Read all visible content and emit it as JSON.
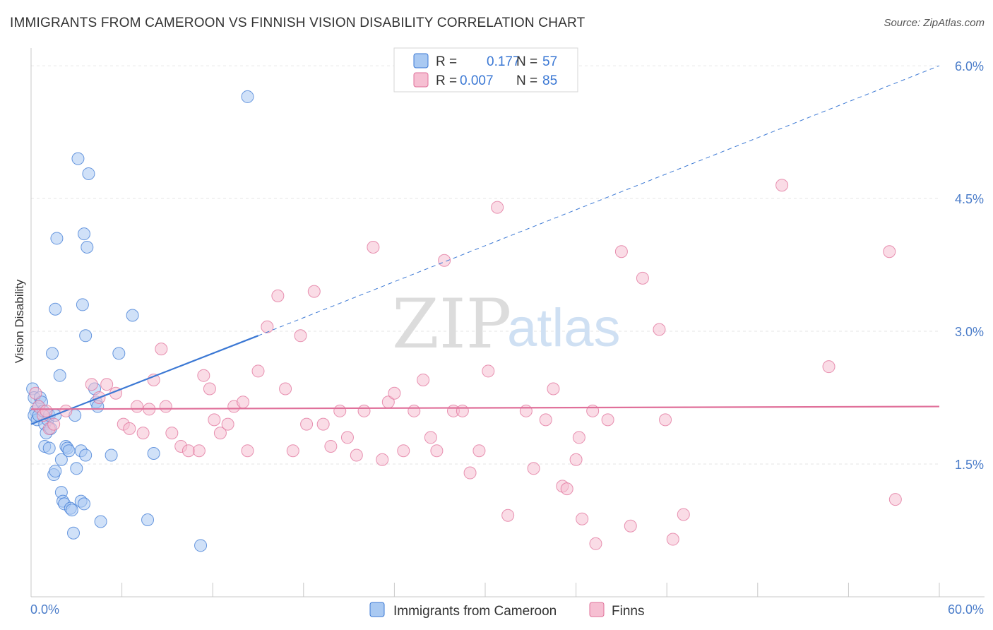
{
  "title": "IMMIGRANTS FROM CAMEROON VS FINNISH VISION DISABILITY CORRELATION CHART",
  "source": "Source: ZipAtlas.com",
  "watermark": {
    "part1": "ZIP",
    "part2": "atlas"
  },
  "colors": {
    "blue": "#3b78d4",
    "blue_fill": "#a9c9f2",
    "pink": "#e0709a",
    "pink_fill": "#f6bfd2",
    "axis_text": "#4a7cc9",
    "grid": "#e3e3e3"
  },
  "legend_top": {
    "rows": [
      {
        "r_label": "R =",
        "r_value": "0.177",
        "n_label": "N =",
        "n_value": "57"
      },
      {
        "r_label": "R =",
        "r_value": "0.007",
        "n_label": "N =",
        "n_value": "85"
      }
    ]
  },
  "chart_data": {
    "type": "scatter",
    "title": "IMMIGRANTS FROM CAMEROON VS FINNISH VISION DISABILITY CORRELATION CHART",
    "xlabel": "",
    "ylabel": "Vision Disability",
    "xlim": [
      0,
      60
    ],
    "ylim": [
      0,
      6.2
    ],
    "x_tick_labels": [
      "0.0%",
      "60.0%"
    ],
    "y_ticks": [
      1.5,
      3.0,
      4.5,
      6.0
    ],
    "y_tick_labels": [
      "1.5%",
      "3.0%",
      "4.5%",
      "6.0%"
    ],
    "legend_position": "bottom-center",
    "series": [
      {
        "name": "Immigrants from Cameroon",
        "color": "#3b78d4",
        "r": 0.177,
        "n": 57,
        "trend": {
          "x0": 0,
          "y0": 1.95,
          "x1": 15,
          "y1": 2.95,
          "dash_x1": 60,
          "dash_y1": 6.0
        },
        "points": [
          [
            0.1,
            2.35
          ],
          [
            0.2,
            2.25
          ],
          [
            0.3,
            2.1
          ],
          [
            0.2,
            2.05
          ],
          [
            0.4,
            2.0
          ],
          [
            0.5,
            2.15
          ],
          [
            0.6,
            2.25
          ],
          [
            0.7,
            2.2
          ],
          [
            0.5,
            2.05
          ],
          [
            0.8,
            2.1
          ],
          [
            0.9,
            1.95
          ],
          [
            1.0,
            1.85
          ],
          [
            1.1,
            2.0
          ],
          [
            1.2,
            2.05
          ],
          [
            1.3,
            1.9
          ],
          [
            0.9,
            1.7
          ],
          [
            1.2,
            1.68
          ],
          [
            1.6,
            2.05
          ],
          [
            1.4,
            2.75
          ],
          [
            1.9,
            2.5
          ],
          [
            1.5,
            1.38
          ],
          [
            1.6,
            1.42
          ],
          [
            2.0,
            1.18
          ],
          [
            2.1,
            1.08
          ],
          [
            2.2,
            1.05
          ],
          [
            2.0,
            1.55
          ],
          [
            2.3,
            1.7
          ],
          [
            2.4,
            1.68
          ],
          [
            2.5,
            1.65
          ],
          [
            2.6,
            1.0
          ],
          [
            2.7,
            0.98
          ],
          [
            2.8,
            0.72
          ],
          [
            3.0,
            1.45
          ],
          [
            2.9,
            2.05
          ],
          [
            3.1,
            4.95
          ],
          [
            3.4,
            3.3
          ],
          [
            3.6,
            2.95
          ],
          [
            3.3,
            1.08
          ],
          [
            3.5,
            1.05
          ],
          [
            3.3,
            1.65
          ],
          [
            3.6,
            1.6
          ],
          [
            3.5,
            4.1
          ],
          [
            3.8,
            4.78
          ],
          [
            3.7,
            3.95
          ],
          [
            4.2,
            2.35
          ],
          [
            4.3,
            2.2
          ],
          [
            4.4,
            2.15
          ],
          [
            4.6,
            0.85
          ],
          [
            5.3,
            1.6
          ],
          [
            5.8,
            2.75
          ],
          [
            6.7,
            3.18
          ],
          [
            7.7,
            0.87
          ],
          [
            8.1,
            1.62
          ],
          [
            11.2,
            0.58
          ],
          [
            14.3,
            5.65
          ],
          [
            1.7,
            4.05
          ],
          [
            1.6,
            3.25
          ]
        ]
      },
      {
        "name": "Finns",
        "color": "#e0709a",
        "r": 0.007,
        "n": 85,
        "trend": {
          "x0": 0,
          "y0": 2.12,
          "x1": 60,
          "y1": 2.15
        },
        "points": [
          [
            0.3,
            2.3
          ],
          [
            0.5,
            2.15
          ],
          [
            0.8,
            2.05
          ],
          [
            1.0,
            2.1
          ],
          [
            1.2,
            1.9
          ],
          [
            1.5,
            1.95
          ],
          [
            2.3,
            2.1
          ],
          [
            4.0,
            2.4
          ],
          [
            4.5,
            2.25
          ],
          [
            5.0,
            2.4
          ],
          [
            5.6,
            2.3
          ],
          [
            6.1,
            1.95
          ],
          [
            6.5,
            1.9
          ],
          [
            7.0,
            2.15
          ],
          [
            7.4,
            1.85
          ],
          [
            7.8,
            2.12
          ],
          [
            8.1,
            2.45
          ],
          [
            8.6,
            2.8
          ],
          [
            8.9,
            2.15
          ],
          [
            9.3,
            1.85
          ],
          [
            9.9,
            1.7
          ],
          [
            10.4,
            1.65
          ],
          [
            11.1,
            1.65
          ],
          [
            11.4,
            2.5
          ],
          [
            11.8,
            2.35
          ],
          [
            12.1,
            2.0
          ],
          [
            12.5,
            1.85
          ],
          [
            13.0,
            1.95
          ],
          [
            13.4,
            2.15
          ],
          [
            14.0,
            2.2
          ],
          [
            14.3,
            1.65
          ],
          [
            15.0,
            2.55
          ],
          [
            15.6,
            3.05
          ],
          [
            16.3,
            3.4
          ],
          [
            16.8,
            2.35
          ],
          [
            17.3,
            1.65
          ],
          [
            17.8,
            2.95
          ],
          [
            18.2,
            1.95
          ],
          [
            18.7,
            3.45
          ],
          [
            19.3,
            1.95
          ],
          [
            19.8,
            1.7
          ],
          [
            20.4,
            2.1
          ],
          [
            20.9,
            1.8
          ],
          [
            21.5,
            1.6
          ],
          [
            22.0,
            2.1
          ],
          [
            22.6,
            3.95
          ],
          [
            23.2,
            1.55
          ],
          [
            23.6,
            2.2
          ],
          [
            24.0,
            2.3
          ],
          [
            24.6,
            1.65
          ],
          [
            25.3,
            2.1
          ],
          [
            25.9,
            2.45
          ],
          [
            26.4,
            1.8
          ],
          [
            26.8,
            1.65
          ],
          [
            27.3,
            3.8
          ],
          [
            27.9,
            2.1
          ],
          [
            28.5,
            2.1
          ],
          [
            29.0,
            1.4
          ],
          [
            29.6,
            1.65
          ],
          [
            30.2,
            2.55
          ],
          [
            30.8,
            4.4
          ],
          [
            31.5,
            0.92
          ],
          [
            32.7,
            2.1
          ],
          [
            33.2,
            1.45
          ],
          [
            34.0,
            2.0
          ],
          [
            34.5,
            2.35
          ],
          [
            35.1,
            1.25
          ],
          [
            35.4,
            1.22
          ],
          [
            36.0,
            1.55
          ],
          [
            36.4,
            0.88
          ],
          [
            36.2,
            1.8
          ],
          [
            37.3,
            0.6
          ],
          [
            38.1,
            2.0
          ],
          [
            39.0,
            3.9
          ],
          [
            39.6,
            0.8
          ],
          [
            40.4,
            3.6
          ],
          [
            41.5,
            3.02
          ],
          [
            41.9,
            2.0
          ],
          [
            42.4,
            0.65
          ],
          [
            43.1,
            0.93
          ],
          [
            49.6,
            4.65
          ],
          [
            52.7,
            2.6
          ],
          [
            56.7,
            3.9
          ],
          [
            57.1,
            1.1
          ],
          [
            37.1,
            2.1
          ]
        ]
      }
    ]
  }
}
